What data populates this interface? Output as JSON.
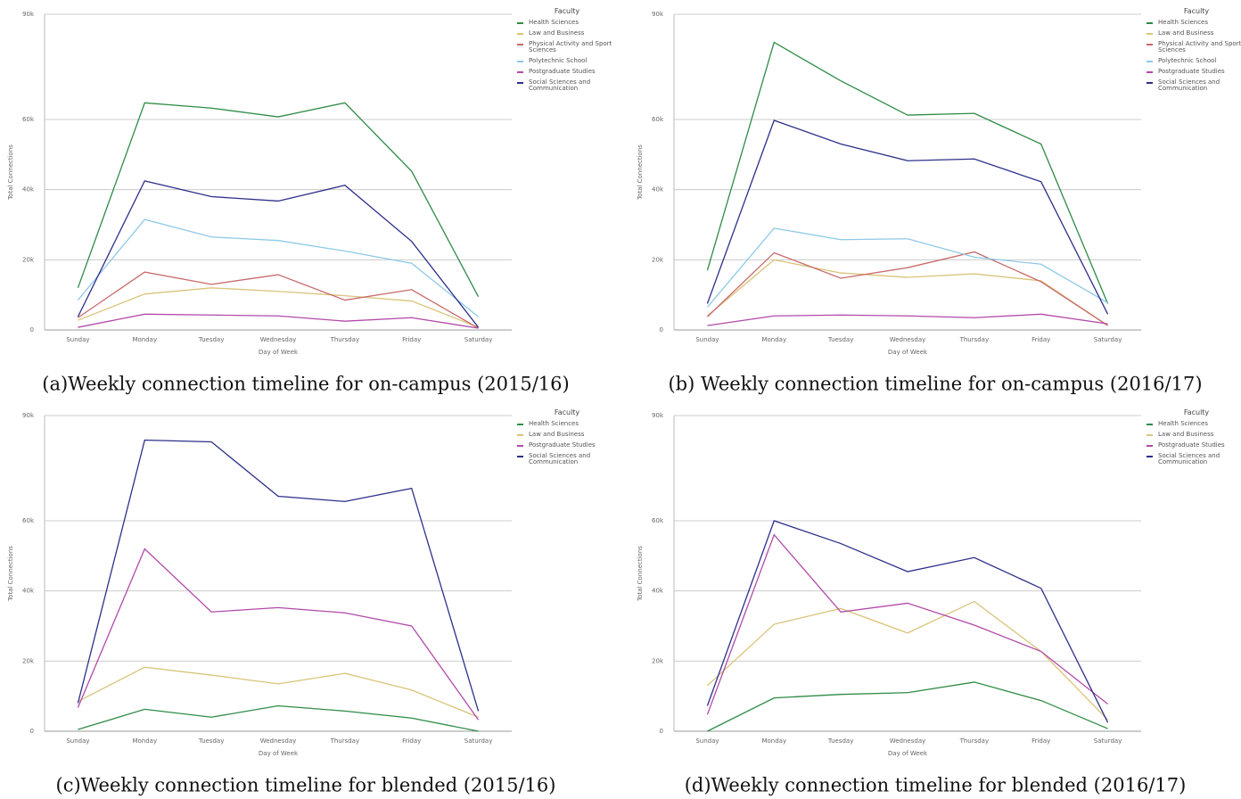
{
  "chart_data": [
    {
      "type": "line",
      "caption": "(a)Weekly connection timeline for on-campus (2015/16)",
      "y_label": "Total Connections",
      "x_label": "Day of Week",
      "legend_title": "Faculty",
      "categories": [
        "Sunday",
        "Monday",
        "Tuesday",
        "Wednesday",
        "Thursday",
        "Friday",
        "Saturday"
      ],
      "ylim": [
        0,
        90000
      ],
      "yticks": [
        0,
        {
          "value": 20000,
          "label": "20k"
        },
        {
          "value": 40000,
          "label": "40k"
        },
        {
          "value": 60000,
          "label": "60k"
        },
        {
          "value": 90000,
          "label": "90k"
        }
      ],
      "grid": true,
      "series": [
        {
          "name": "Health Sciences",
          "color": "#2e8b46",
          "values": [
            12000,
            64750,
            63250,
            60750,
            64750,
            45250,
            9500
          ]
        },
        {
          "name": "Law and Business",
          "color": "#d9c47a",
          "values": [
            2750,
            10250,
            12000,
            11000,
            9750,
            8250,
            750
          ]
        },
        {
          "name": "Physical Activity and Sport Sciences",
          "color": "#c96a6a",
          "values": [
            3500,
            16500,
            13000,
            15750,
            8500,
            11500,
            500
          ]
        },
        {
          "name": "Polytechnic School",
          "color": "#8ec9e8",
          "values": [
            8500,
            31500,
            26500,
            25500,
            22500,
            19000,
            3750
          ]
        },
        {
          "name": "Postgraduate Studies",
          "color": "#b24aa8",
          "values": [
            750,
            4500,
            4250,
            4000,
            2500,
            3500,
            500
          ]
        },
        {
          "name": "Social Sciences and Communication",
          "color": "#2d2f8a",
          "values": [
            3750,
            42500,
            38000,
            36750,
            41250,
            25250,
            750
          ]
        }
      ]
    },
    {
      "type": "line",
      "caption": "(b) Weekly connection timeline for on-campus (2016/17)",
      "y_label": "Total Connections",
      "x_label": "Day of Week",
      "legend_title": "Faculty",
      "categories": [
        "Sunday",
        "Monday",
        "Tuesday",
        "Wednesday",
        "Thursday",
        "Friday",
        "Saturday"
      ],
      "ylim": [
        0,
        90000
      ],
      "yticks": [
        0,
        {
          "value": 20000,
          "label": "20k"
        },
        {
          "value": 40000,
          "label": "40k"
        },
        {
          "value": 60000,
          "label": "60k"
        },
        {
          "value": 90000,
          "label": "90k"
        }
      ],
      "grid": true,
      "series": [
        {
          "name": "Health Sciences",
          "color": "#2e8b46",
          "values": [
            17000,
            82000,
            71000,
            61250,
            61750,
            53000,
            7500
          ]
        },
        {
          "name": "Law and Business",
          "color": "#d9c47a",
          "values": [
            4000,
            20000,
            16250,
            15000,
            16000,
            14000,
            1250
          ]
        },
        {
          "name": "Physical Activity and Sport Sciences",
          "color": "#c96a6a",
          "values": [
            3750,
            22000,
            14750,
            17750,
            22250,
            13750,
            1250
          ]
        },
        {
          "name": "Polytechnic School",
          "color": "#8ec9e8",
          "values": [
            6500,
            29000,
            25750,
            26000,
            20750,
            18750,
            7750
          ]
        },
        {
          "name": "Postgraduate Studies",
          "color": "#b24aa8",
          "values": [
            1250,
            4000,
            4250,
            4000,
            3500,
            4500,
            1750
          ]
        },
        {
          "name": "Social Sciences and Communication",
          "color": "#2d2f8a",
          "values": [
            7500,
            59750,
            53000,
            48250,
            48750,
            42250,
            4500
          ]
        }
      ]
    },
    {
      "type": "line",
      "caption": "(c)Weekly connection timeline for blended (2015/16)",
      "y_label": "Total Connections",
      "x_label": "Day of Week",
      "legend_title": "Faculty",
      "categories": [
        "Sunday",
        "Monday",
        "Tuesday",
        "Wednesday",
        "Thursday",
        "Friday",
        "Saturday"
      ],
      "ylim": [
        0,
        90000
      ],
      "yticks": [
        0,
        {
          "value": 20000,
          "label": "20k"
        },
        {
          "value": 40000,
          "label": "40k"
        },
        {
          "value": 60000,
          "label": "60k"
        },
        {
          "value": 90000,
          "label": "90k"
        }
      ],
      "grid": true,
      "series": [
        {
          "name": "Health Sciences",
          "color": "#2e8b46",
          "values": [
            500,
            6250,
            4000,
            7250,
            5750,
            3750,
            0
          ]
        },
        {
          "name": "Law and Business",
          "color": "#d9c47a",
          "values": [
            8500,
            18250,
            16000,
            13500,
            16500,
            11750,
            4000
          ]
        },
        {
          "name": "Postgraduate Studies",
          "color": "#b24aa8",
          "values": [
            6750,
            52000,
            34000,
            35250,
            33750,
            30000,
            3250
          ]
        },
        {
          "name": "Social Sciences and Communication",
          "color": "#2d2f8a",
          "values": [
            8000,
            83000,
            82500,
            67000,
            65500,
            69250,
            5750
          ]
        }
      ]
    },
    {
      "type": "line",
      "caption": "(d)Weekly connection timeline for blended (2016/17)",
      "y_label": "Total Connections",
      "x_label": "Day of Week",
      "legend_title": "Faculty",
      "categories": [
        "Sunday",
        "Monday",
        "Tuesday",
        "Wednesday",
        "Thursday",
        "Friday",
        "Saturday"
      ],
      "ylim": [
        0,
        90000
      ],
      "yticks": [
        0,
        {
          "value": 20000,
          "label": "20k"
        },
        {
          "value": 40000,
          "label": "40k"
        },
        {
          "value": 60000,
          "label": "60k"
        },
        {
          "value": 90000,
          "label": "90k"
        }
      ],
      "grid": true,
      "series": [
        {
          "name": "Health Sciences",
          "color": "#2e8b46",
          "values": [
            0,
            9500,
            10500,
            11000,
            14000,
            8750,
            750
          ]
        },
        {
          "name": "Law and Business",
          "color": "#d9c47a",
          "values": [
            13000,
            30500,
            35000,
            28000,
            37000,
            22750,
            3250
          ]
        },
        {
          "name": "Postgraduate Studies",
          "color": "#b24aa8",
          "values": [
            4750,
            56000,
            34000,
            36500,
            30250,
            22750,
            7750
          ]
        },
        {
          "name": "Social Sciences and Communication",
          "color": "#2d2f8a",
          "values": [
            7250,
            60000,
            53500,
            45500,
            49500,
            40750,
            2500
          ]
        }
      ]
    }
  ]
}
